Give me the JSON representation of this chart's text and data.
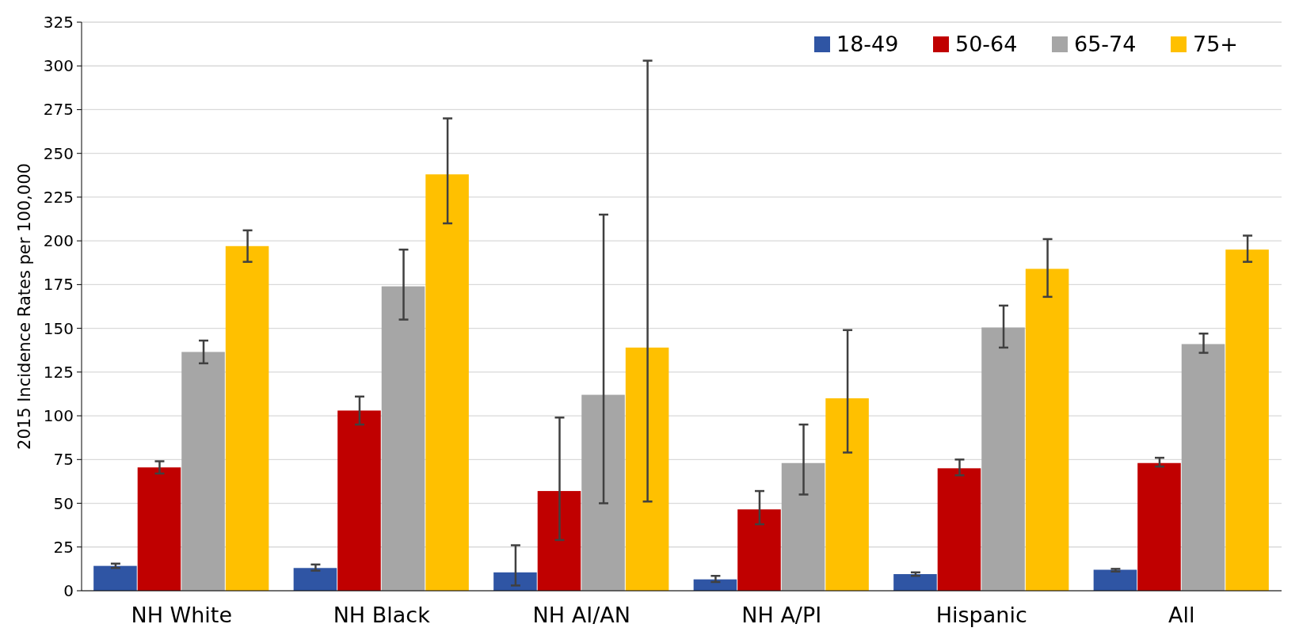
{
  "chart_data": {
    "type": "bar",
    "ylabel": "2015 Incidence Rates per 100,000",
    "categories": [
      "NH White",
      "NH Black",
      "NH AI/AN",
      "NH A/PI",
      "Hispanic",
      "All"
    ],
    "series": [
      {
        "name": "18-49",
        "color": "#2f55a4",
        "values": [
          14.2,
          13,
          10.5,
          6.5,
          9.5,
          12
        ],
        "errors": [
          [
            13,
            15.5
          ],
          [
            11.5,
            15
          ],
          [
            3,
            26
          ],
          [
            5,
            8.5
          ],
          [
            8.5,
            10.5
          ],
          [
            11,
            12.5
          ]
        ]
      },
      {
        "name": "50-64",
        "color": "#c00000",
        "values": [
          70.5,
          103,
          57,
          46.5,
          70,
          73
        ],
        "errors": [
          [
            67,
            74
          ],
          [
            95,
            111
          ],
          [
            29,
            99
          ],
          [
            38,
            57
          ],
          [
            66,
            75
          ],
          [
            71,
            76
          ]
        ]
      },
      {
        "name": "65-74",
        "color": "#a6a6a6",
        "values": [
          136.5,
          174,
          112,
          73,
          150.5,
          141
        ],
        "errors": [
          [
            130,
            143
          ],
          [
            155,
            195
          ],
          [
            50,
            215
          ],
          [
            55,
            95
          ],
          [
            139,
            163
          ],
          [
            136,
            147
          ]
        ]
      },
      {
        "name": "75+",
        "color": "#ffc000",
        "values": [
          197,
          238,
          139,
          110,
          184,
          195
        ],
        "errors": [
          [
            188,
            206
          ],
          [
            210,
            270
          ],
          [
            51,
            303
          ],
          [
            79,
            149
          ],
          [
            168,
            201
          ],
          [
            188,
            203
          ]
        ]
      }
    ],
    "ylim": [
      0,
      325
    ],
    "yticks": [
      0,
      25,
      50,
      75,
      100,
      125,
      150,
      175,
      200,
      225,
      250,
      275,
      300,
      325
    ],
    "grid": "y",
    "legend": "top right"
  }
}
